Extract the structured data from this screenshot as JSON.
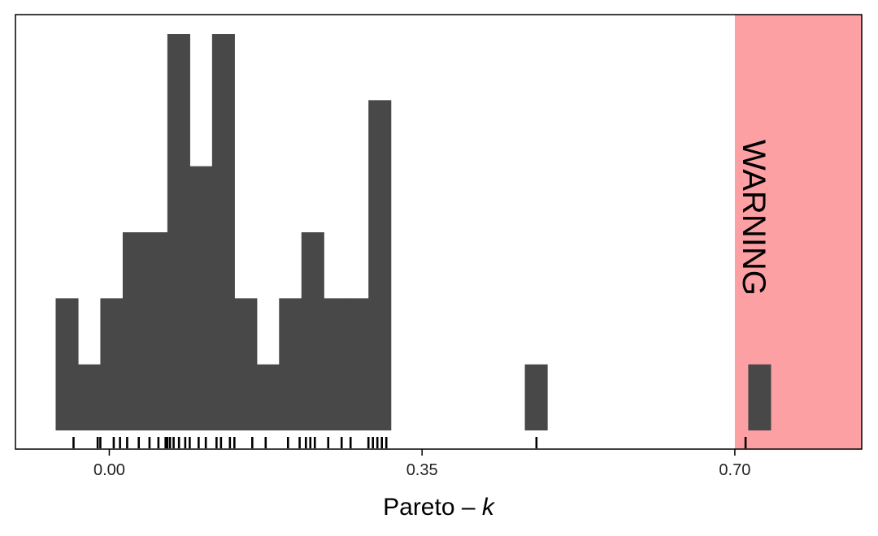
{
  "chart_data": {
    "type": "histogram",
    "xlabel": "Pareto – ",
    "xlabel_italic": "k",
    "xlim": [
      -0.105,
      0.842
    ],
    "x_ticks": [
      {
        "value": 0.0,
        "label": "0.00"
      },
      {
        "value": 0.35,
        "label": "0.35"
      },
      {
        "value": 0.7,
        "label": "0.70"
      }
    ],
    "bin_width": 0.025,
    "bins": [
      {
        "x0": -0.06,
        "count": 2
      },
      {
        "x0": -0.035,
        "count": 1
      },
      {
        "x0": -0.01,
        "count": 2
      },
      {
        "x0": 0.015,
        "count": 3
      },
      {
        "x0": 0.04,
        "count": 3
      },
      {
        "x0": 0.065,
        "count": 6
      },
      {
        "x0": 0.09,
        "count": 4
      },
      {
        "x0": 0.115,
        "count": 6
      },
      {
        "x0": 0.14,
        "count": 2
      },
      {
        "x0": 0.165,
        "count": 1
      },
      {
        "x0": 0.19,
        "count": 2
      },
      {
        "x0": 0.215,
        "count": 3
      },
      {
        "x0": 0.24,
        "count": 2
      },
      {
        "x0": 0.265,
        "count": 2
      },
      {
        "x0": 0.29,
        "count": 5
      },
      {
        "x0": 0.465,
        "count": 1
      },
      {
        "x0": 0.715,
        "count": 1
      }
    ],
    "ylim": [
      0,
      6.3
    ],
    "rug": [
      -0.04,
      -0.013,
      -0.01,
      0.005,
      0.012,
      0.02,
      0.033,
      0.045,
      0.055,
      0.063,
      0.065,
      0.068,
      0.072,
      0.078,
      0.085,
      0.09,
      0.1,
      0.108,
      0.12,
      0.125,
      0.135,
      0.14,
      0.16,
      0.175,
      0.2,
      0.213,
      0.22,
      0.225,
      0.23,
      0.245,
      0.26,
      0.27,
      0.29,
      0.295,
      0.3,
      0.305,
      0.31,
      0.478,
      0.712
    ],
    "warning_band": {
      "from": 0.7,
      "label": "WARNING",
      "color": "#fca0a3"
    },
    "bar_color": "#484848",
    "grid": false
  }
}
